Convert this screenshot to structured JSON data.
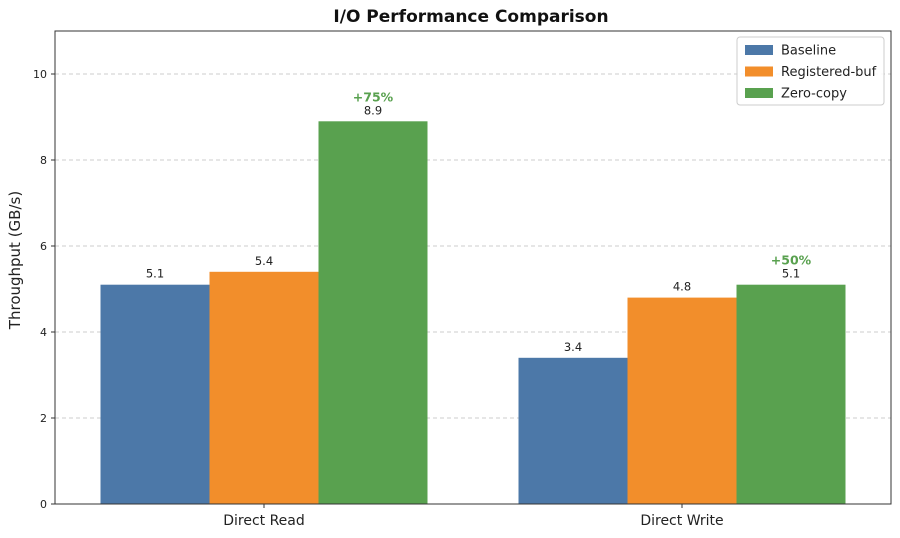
{
  "chart_data": {
    "type": "bar",
    "title": "I/O Performance Comparison",
    "xlabel": "",
    "ylabel": "Throughput (GB/s)",
    "ylim": [
      0,
      11
    ],
    "yticks": [
      0,
      2,
      4,
      6,
      8,
      10
    ],
    "grid": true,
    "legend_position": "top-right",
    "categories": [
      "Direct Read",
      "Direct Write"
    ],
    "series": [
      {
        "name": "Baseline",
        "color": "#4c78a8",
        "values": [
          5.1,
          3.4
        ],
        "labels": [
          "5.1",
          "3.4"
        ]
      },
      {
        "name": "Registered-buf",
        "color": "#f28e2b",
        "values": [
          5.4,
          4.8
        ],
        "labels": [
          "5.4",
          "4.8"
        ]
      },
      {
        "name": "Zero-copy",
        "color": "#59a14f",
        "values": [
          8.9,
          5.1
        ],
        "labels": [
          "8.9",
          "5.1"
        ]
      }
    ],
    "annotations": [
      {
        "category": "Direct Read",
        "series": "Zero-copy",
        "text": "+75%",
        "color": "#59a14f"
      },
      {
        "category": "Direct Write",
        "series": "Zero-copy",
        "text": "+50%",
        "color": "#59a14f"
      }
    ]
  }
}
